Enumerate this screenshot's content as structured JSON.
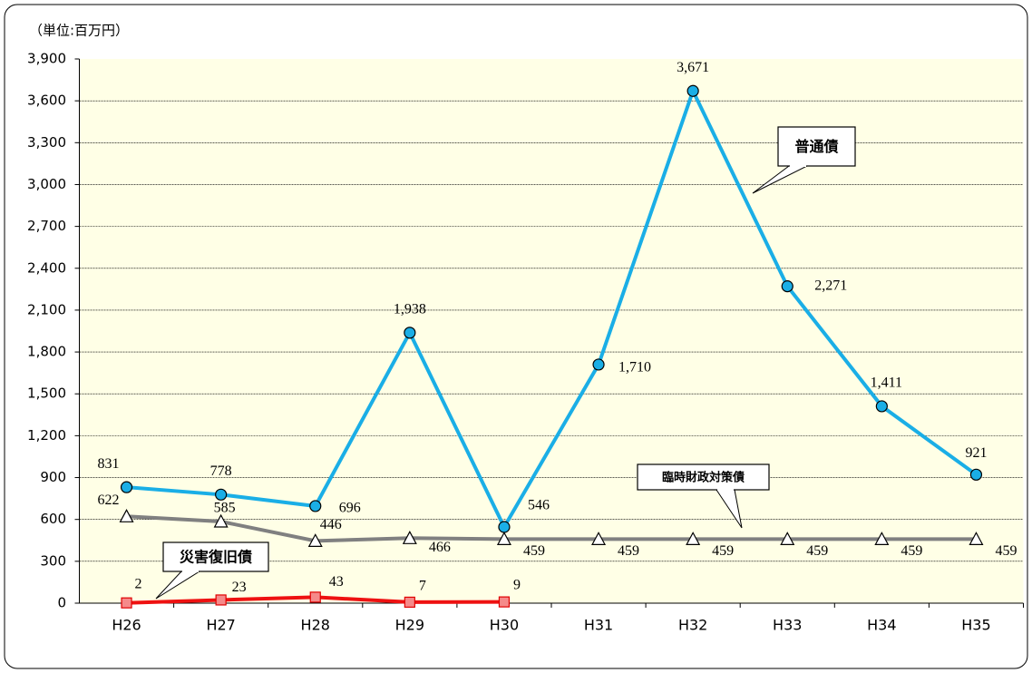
{
  "chart_data": {
    "type": "line",
    "unit_label": "（単位:百万円）",
    "categories": [
      "H26",
      "H27",
      "H28",
      "H29",
      "H30",
      "H31",
      "H32",
      "H33",
      "H34",
      "H35"
    ],
    "ylim": [
      0,
      3900
    ],
    "yticks": [
      0,
      300,
      600,
      900,
      {
        "value": 1200,
        "label": "1,200"
      },
      {
        "value": 1500,
        "label": "1,500"
      },
      {
        "value": 1800,
        "label": "1,800"
      },
      {
        "value": 2100,
        "label": "2,100"
      },
      {
        "value": 2400,
        "label": "2,400"
      },
      {
        "value": 2700,
        "label": "2,700"
      },
      {
        "value": 3000,
        "label": "3,000"
      },
      {
        "value": 3300,
        "label": "3,300"
      },
      {
        "value": 3600,
        "label": "3,600"
      },
      {
        "value": 3900,
        "label": "3,900"
      }
    ],
    "grid": true,
    "series": [
      {
        "name": "普通債",
        "color": "#1aaee6",
        "marker": "circle",
        "values": [
          831,
          778,
          696,
          1938,
          546,
          1710,
          3671,
          2271,
          1411,
          921
        ],
        "value_labels": [
          "831",
          "778",
          "696",
          "1,938",
          "546",
          "1,710",
          "3,671",
          "2,271",
          "1,411",
          "921"
        ]
      },
      {
        "name": "臨時財政対策債",
        "color": "#808080",
        "marker": "triangle",
        "values": [
          622,
          585,
          446,
          466,
          459,
          459,
          459,
          459,
          459,
          459
        ]
      },
      {
        "name": "災害復旧債",
        "color": "#ee1111",
        "marker": "square",
        "values": [
          2,
          23,
          43,
          7,
          9,
          null,
          null,
          null,
          null,
          null
        ]
      }
    ]
  }
}
